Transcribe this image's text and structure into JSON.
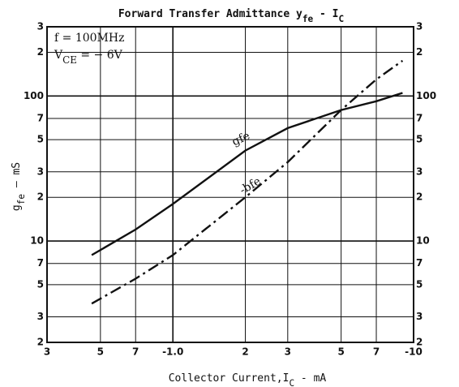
{
  "chart_data": {
    "type": "line",
    "title": [
      "Forward Transfer Admittance y",
      "fe",
      " - I",
      "C"
    ],
    "x_label": [
      "Collector Current,I",
      "C",
      " - mA"
    ],
    "y_label": [
      "g",
      "fe",
      " — mS"
    ],
    "annotations": [
      [
        "f = 100MHz"
      ],
      [
        "V",
        "CE",
        " = − 6V"
      ]
    ],
    "log_x": true,
    "log_y": true,
    "grid": true,
    "xlim": [
      -0.3,
      -10
    ],
    "ylim": [
      2,
      300
    ],
    "xticks": [
      {
        "value": -0.3,
        "label": "3"
      },
      {
        "value": -0.5,
        "label": "5"
      },
      {
        "value": -0.7,
        "label": "7"
      },
      {
        "value": -1,
        "label": "-1.0"
      },
      {
        "value": -2,
        "label": "2"
      },
      {
        "value": -3,
        "label": "3"
      },
      {
        "value": -5,
        "label": "5"
      },
      {
        "value": -7,
        "label": "7"
      },
      -10
    ],
    "yticks": [
      2,
      3,
      5,
      7,
      10,
      {
        "value": 20,
        "label": "2"
      },
      {
        "value": 30,
        "label": "3"
      },
      {
        "value": 50,
        "label": "5"
      },
      {
        "value": 70,
        "label": "7"
      },
      100,
      {
        "value": 200,
        "label": "2"
      },
      {
        "value": 300,
        "label": "3"
      }
    ],
    "series": [
      {
        "name": "gfe",
        "color": "#111111",
        "dash": "none",
        "x": [
          -0.46,
          -0.7,
          -1,
          -2,
          -3,
          -5,
          -7,
          -9
        ],
        "values": [
          8,
          12,
          18,
          42,
          60,
          80,
          92,
          105
        ]
      },
      {
        "name": "-bfe",
        "color": "#111111",
        "dash": "14 5 3 5",
        "x": [
          -0.46,
          -0.7,
          -1,
          -2,
          -3,
          -5,
          -7,
          -9
        ],
        "values": [
          3.7,
          5.5,
          8,
          20,
          35,
          80,
          130,
          175
        ]
      }
    ]
  }
}
